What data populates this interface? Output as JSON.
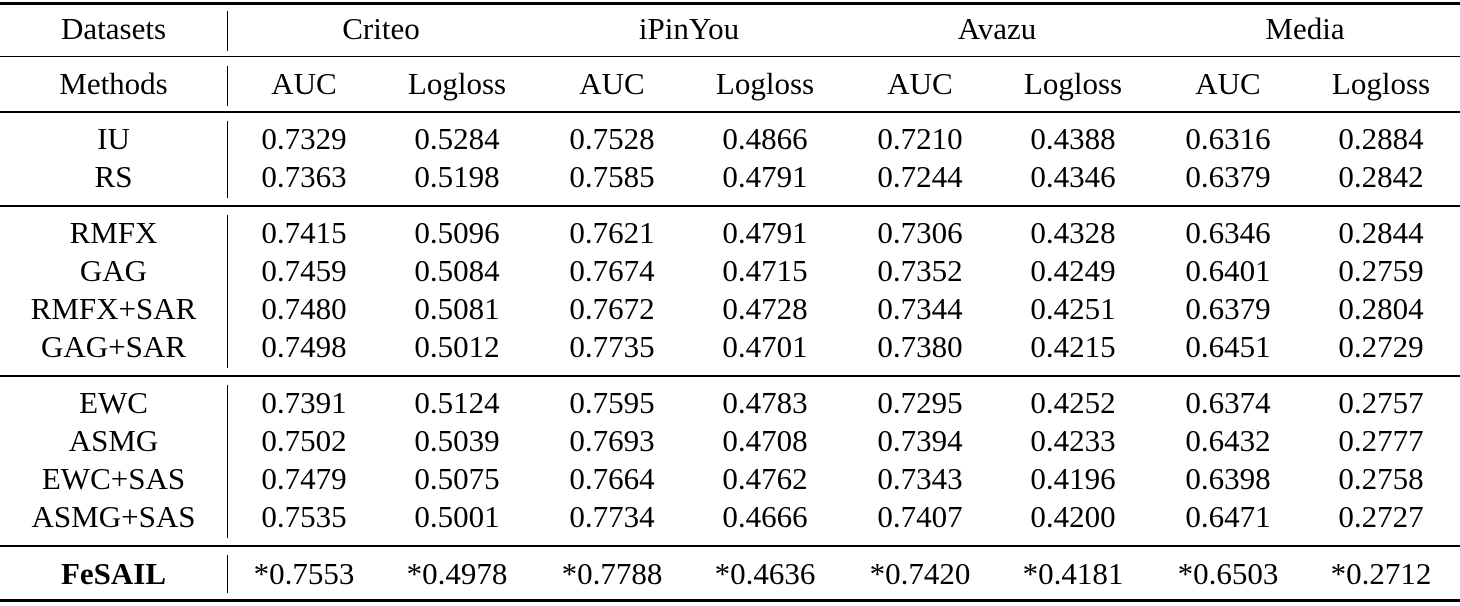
{
  "header": {
    "datasets_label": "Datasets",
    "methods_label": "Methods",
    "datasets": [
      "Criteo",
      "iPinYou",
      "Avazu",
      "Media"
    ],
    "metrics": [
      "AUC",
      "Logloss",
      "AUC",
      "Logloss",
      "AUC",
      "Logloss",
      "AUC",
      "Logloss"
    ]
  },
  "groups": [
    {
      "rows": [
        {
          "method": "IU",
          "values": [
            "0.7329",
            "0.5284",
            "0.7528",
            "0.4866",
            "0.7210",
            "0.4388",
            "0.6316",
            "0.2884"
          ]
        },
        {
          "method": "RS",
          "values": [
            "0.7363",
            "0.5198",
            "0.7585",
            "0.4791",
            "0.7244",
            "0.4346",
            "0.6379",
            "0.2842"
          ]
        }
      ]
    },
    {
      "rows": [
        {
          "method": "RMFX",
          "values": [
            "0.7415",
            "0.5096",
            "0.7621",
            "0.4791",
            "0.7306",
            "0.4328",
            "0.6346",
            "0.2844"
          ]
        },
        {
          "method": "GAG",
          "values": [
            "0.7459",
            "0.5084",
            "0.7674",
            "0.4715",
            "0.7352",
            "0.4249",
            "0.6401",
            "0.2759"
          ]
        },
        {
          "method": "RMFX+SAR",
          "values": [
            "0.7480",
            "0.5081",
            "0.7672",
            "0.4728",
            "0.7344",
            "0.4251",
            "0.6379",
            "0.2804"
          ]
        },
        {
          "method": "GAG+SAR",
          "values": [
            "0.7498",
            "0.5012",
            "0.7735",
            "0.4701",
            "0.7380",
            "0.4215",
            "0.6451",
            "0.2729"
          ]
        }
      ]
    },
    {
      "rows": [
        {
          "method": "EWC",
          "values": [
            "0.7391",
            "0.5124",
            "0.7595",
            "0.4783",
            "0.7295",
            "0.4252",
            "0.6374",
            "0.2757"
          ]
        },
        {
          "method": "ASMG",
          "values": [
            "0.7502",
            "0.5039",
            "0.7693",
            "0.4708",
            "0.7394",
            "0.4233",
            "0.6432",
            "0.2777"
          ]
        },
        {
          "method": "EWC+SAS",
          "values": [
            "0.7479",
            "0.5075",
            "0.7664",
            "0.4762",
            "0.7343",
            "0.4196",
            "0.6398",
            "0.2758"
          ]
        },
        {
          "method": "ASMG+SAS",
          "values": [
            "0.7535",
            "0.5001",
            "0.7734",
            "0.4666",
            "0.7407",
            "0.4200",
            "0.6471",
            "0.2727"
          ]
        }
      ]
    },
    {
      "rows": [
        {
          "method": "FeSAIL",
          "bold": true,
          "values": [
            "*0.7553",
            "*0.4978",
            "*0.7788",
            "*0.4636",
            "*0.7420",
            "*0.4181",
            "*0.6503",
            "*0.2712"
          ]
        }
      ]
    }
  ]
}
